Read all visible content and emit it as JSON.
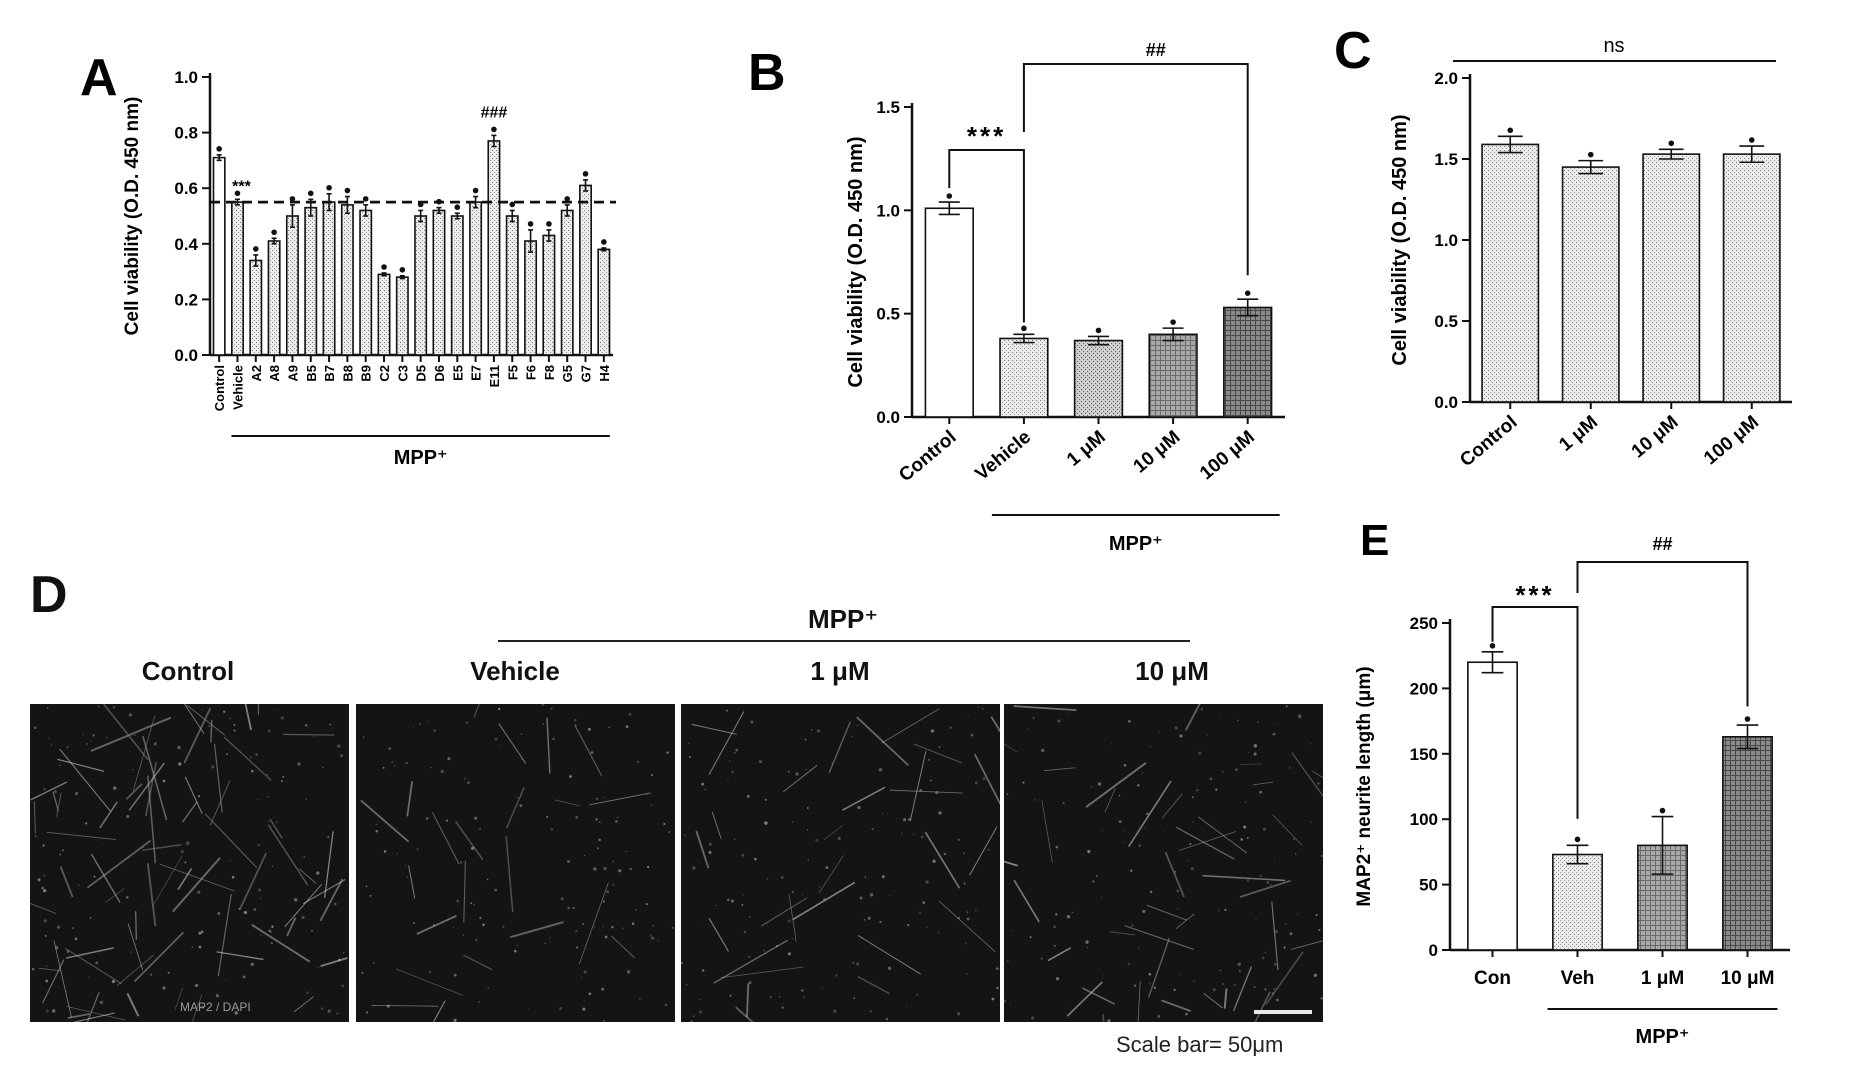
{
  "chart_data": [
    {
      "panel": "A",
      "type": "bar",
      "ylabel": "Cell viability (O.D. 450 nm)",
      "ylim": [
        0,
        1.0
      ],
      "yticks": [
        "0.0",
        "0.2",
        "0.4",
        "0.6",
        "0.8",
        "1.0"
      ],
      "categories": [
        "Control",
        "Vehicle",
        "A2",
        "A8",
        "A9",
        "B5",
        "B7",
        "B8",
        "B9",
        "C2",
        "C3",
        "D5",
        "D6",
        "E5",
        "E7",
        "E11",
        "F5",
        "F6",
        "F8",
        "G5",
        "G7",
        "H4"
      ],
      "values": [
        0.71,
        0.55,
        0.34,
        0.41,
        0.5,
        0.53,
        0.55,
        0.54,
        0.52,
        0.29,
        0.28,
        0.5,
        0.52,
        0.5,
        0.55,
        0.77,
        0.5,
        0.41,
        0.43,
        0.52,
        0.61,
        0.38
      ],
      "errors": [
        0.01,
        0.01,
        0.02,
        0.01,
        0.04,
        0.03,
        0.03,
        0.03,
        0.02,
        0.005,
        0.005,
        0.02,
        0.01,
        0.01,
        0.02,
        0.02,
        0.02,
        0.04,
        0.02,
        0.02,
        0.02,
        0.005
      ],
      "dashed_reference": 0.55,
      "annotations": [
        {
          "text": "***",
          "category": "Vehicle"
        },
        {
          "text": "###",
          "category": "E11"
        }
      ],
      "group_label": "MPP⁺"
    },
    {
      "panel": "B",
      "type": "bar",
      "ylabel": "Cell viability (O.D. 450 nm)",
      "ylim": [
        0,
        1.5
      ],
      "yticks": [
        "0.0",
        "0.5",
        "1.0",
        "1.5"
      ],
      "categories": [
        "Control",
        "Vehicle",
        "1 μM",
        "10 μM",
        "100 μM"
      ],
      "values": [
        1.01,
        0.38,
        0.37,
        0.4,
        0.53
      ],
      "errors": [
        0.03,
        0.02,
        0.02,
        0.03,
        0.04
      ],
      "annotations": [
        "***",
        "##"
      ],
      "group_label": "MPP⁺"
    },
    {
      "panel": "C",
      "type": "bar",
      "ylabel": "Cell viability (O.D. 450 nm)",
      "ylim": [
        0,
        2.0
      ],
      "yticks": [
        "0.0",
        "0.5",
        "1.0",
        "1.5",
        "2.0"
      ],
      "categories": [
        "Control",
        "1 μM",
        "10 μM",
        "100 μM"
      ],
      "values": [
        1.59,
        1.45,
        1.53,
        1.53
      ],
      "errors": [
        0.05,
        0.04,
        0.03,
        0.05
      ],
      "annotations": [
        "ns"
      ]
    },
    {
      "panel": "E",
      "type": "bar",
      "ylabel": "MAP2⁺ neurite length (μm)",
      "ylim": [
        0,
        250
      ],
      "yticks": [
        "0",
        "50",
        "100",
        "150",
        "200",
        "250"
      ],
      "categories": [
        "Con",
        "Veh",
        "1 μM",
        "10 μM"
      ],
      "values": [
        220,
        73,
        80,
        163
      ],
      "errors": [
        8,
        7,
        22,
        9
      ],
      "annotations": [
        "***",
        "##"
      ],
      "group_label": "MPP⁺"
    }
  ],
  "panel_d": {
    "letter": "D",
    "group_label": "MPP⁺",
    "columns": [
      "Control",
      "Vehicle",
      "1 μM",
      "10 μM"
    ],
    "stain_label": "MAP2 / DAPI",
    "scale_text": "Scale bar= 50μm"
  },
  "letters": {
    "a": "A",
    "b": "B",
    "c": "C",
    "e": "E"
  }
}
